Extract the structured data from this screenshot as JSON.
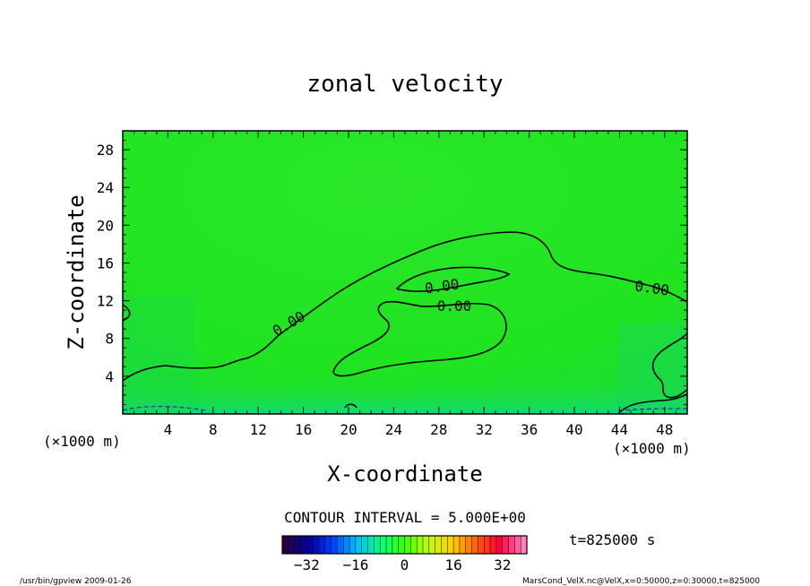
{
  "chart_data": {
    "type": "contour",
    "title": "zonal velocity",
    "xlabel": "X-coordinate",
    "ylabel": "Z-coordinate",
    "x_unit": "(×1000 m)",
    "y_unit": "(×1000 m)",
    "xlim": [
      0,
      50
    ],
    "ylim": [
      0,
      30
    ],
    "x_ticks": [
      4,
      8,
      12,
      16,
      20,
      24,
      28,
      32,
      36,
      40,
      44,
      48
    ],
    "y_ticks": [
      4,
      8,
      12,
      16,
      20,
      24,
      28
    ],
    "contour_labels": [
      "0.00",
      "0.00",
      "0.00",
      "0.00"
    ],
    "contour_interval_text": "CONTOUR INTERVAL = 5.000E+00",
    "time_text": "t=825000 s",
    "colorbar": {
      "range": [
        -40,
        40
      ],
      "ticks": [
        -32,
        -16,
        0,
        16,
        32
      ],
      "colors": [
        "#2a0040",
        "#0000a0",
        "#0040ff",
        "#00c0ff",
        "#00ff80",
        "#40ff00",
        "#c0ff00",
        "#ffd000",
        "#ff6000",
        "#ff0040",
        "#ff80c0"
      ]
    },
    "field_color": "#1ee61e",
    "footer_left": "/usr/bin/gpview   2009-01-26",
    "footer_right": "MarsCond_VelX.nc@VelX,x=0:50000,z=0:30000,t=825000"
  }
}
